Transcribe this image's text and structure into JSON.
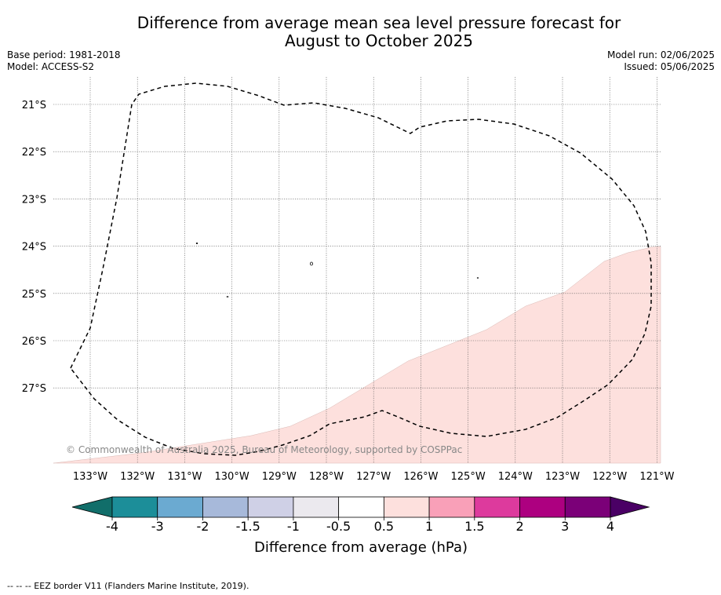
{
  "title_line1": "Difference from average mean sea level pressure forecast for",
  "title_line2": "August to October 2025",
  "meta_left": {
    "base_period": "Base period: 1981-2018",
    "model": "Model: ACCESS-S2"
  },
  "meta_right": {
    "model_run": "Model run: 02/06/2025",
    "issued": "Issued: 05/06/2025"
  },
  "map": {
    "lat_labels": [
      "21°S",
      "22°S",
      "23°S",
      "24°S",
      "25°S",
      "26°S",
      "27°S"
    ],
    "lon_labels": [
      "133°W",
      "132°W",
      "131°W",
      "130°W",
      "129°W",
      "128°W",
      "127°W",
      "126°W",
      "125°W",
      "124°W",
      "123°W",
      "122°W",
      "121°W"
    ],
    "copyright": "© Commonwealth of Australia 2025, Bureau of Meteorology, supported by COSPPac",
    "anomaly_fill_color": "#fde0dd"
  },
  "colorbar": {
    "label": "Difference from average (hPa)",
    "ticks": [
      "-4",
      "-3",
      "-2",
      "-1.5",
      "-1",
      "-0.5",
      "0.5",
      "1",
      "1.5",
      "2",
      "3",
      "4"
    ],
    "colors": [
      "#116e6a",
      "#1c8e99",
      "#6baad1",
      "#a7b9da",
      "#cfd0e6",
      "#ebe9ee",
      "#ffffff",
      "#fde0dd",
      "#f9a0b8",
      "#dd3a9d",
      "#ad0080",
      "#7b0078",
      "#4a0065"
    ]
  },
  "footer": "--  --  -- EEZ border V11 (Flanders Marine Institute, 2019)."
}
